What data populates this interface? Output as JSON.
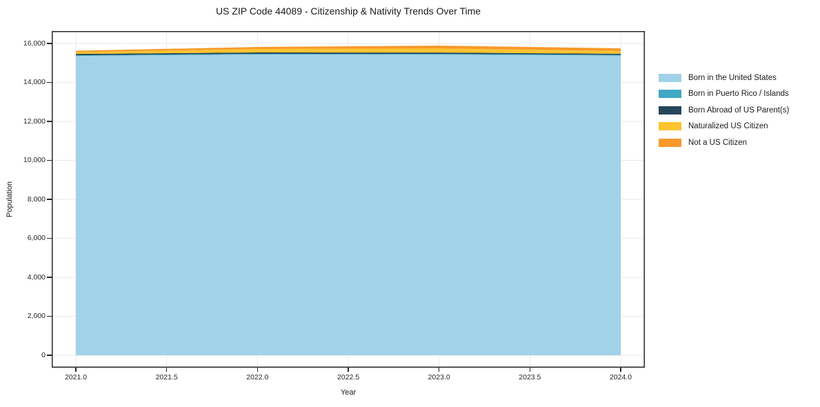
{
  "title": "US ZIP Code 44089 - Citizenship & Nativity Trends Over Time",
  "colors": {
    "background": "#ffffff",
    "grid": "#e9e9e9",
    "spine": "#262626",
    "text": "#1a1a1a"
  },
  "chart_data": {
    "type": "area",
    "stacked": true,
    "title": "US ZIP Code 44089 - Citizenship & Nativity Trends Over Time",
    "xlabel": "Year",
    "ylabel": "Population",
    "x": [
      2021,
      2022,
      2023,
      2024
    ],
    "series": [
      {
        "name": "Born in the United States",
        "color": "#a2d2e7",
        "values": [
          15360,
          15440,
          15430,
          15380
        ]
      },
      {
        "name": "Born in Puerto Rico / Islands",
        "color": "#40a8c4",
        "values": [
          35,
          30,
          35,
          35
        ]
      },
      {
        "name": "Born Abroad of US Parent(s)",
        "color": "#26475a",
        "values": [
          70,
          70,
          70,
          55
        ]
      },
      {
        "name": "Naturalized US Citizen",
        "color": "#fdc42f",
        "values": [
          90,
          175,
          210,
          140
        ]
      },
      {
        "name": "Not a US Citizen",
        "color": "#f8992b",
        "values": [
          70,
          105,
          145,
          140
        ]
      }
    ],
    "stacked_totals": [
      15625,
      15820,
      15890,
      15750
    ],
    "xlim": [
      2021,
      2024
    ],
    "ylim": [
      0,
      16000
    ],
    "xticks": {
      "values": [
        2021.0,
        2021.5,
        2022.0,
        2022.5,
        2023.0,
        2023.5,
        2024.0
      ],
      "labels": [
        "2021.0",
        "2021.5",
        "2022.0",
        "2022.5",
        "2023.0",
        "2023.5",
        "2024.0"
      ]
    },
    "yticks": {
      "values": [
        0,
        2000,
        4000,
        6000,
        8000,
        10000,
        12000,
        14000,
        16000
      ],
      "labels": [
        "0",
        "2,000",
        "4,000",
        "6,000",
        "8,000",
        "10,000",
        "12,000",
        "14,000",
        "16,000"
      ]
    },
    "grid": true,
    "legend_position": "outside-right"
  }
}
